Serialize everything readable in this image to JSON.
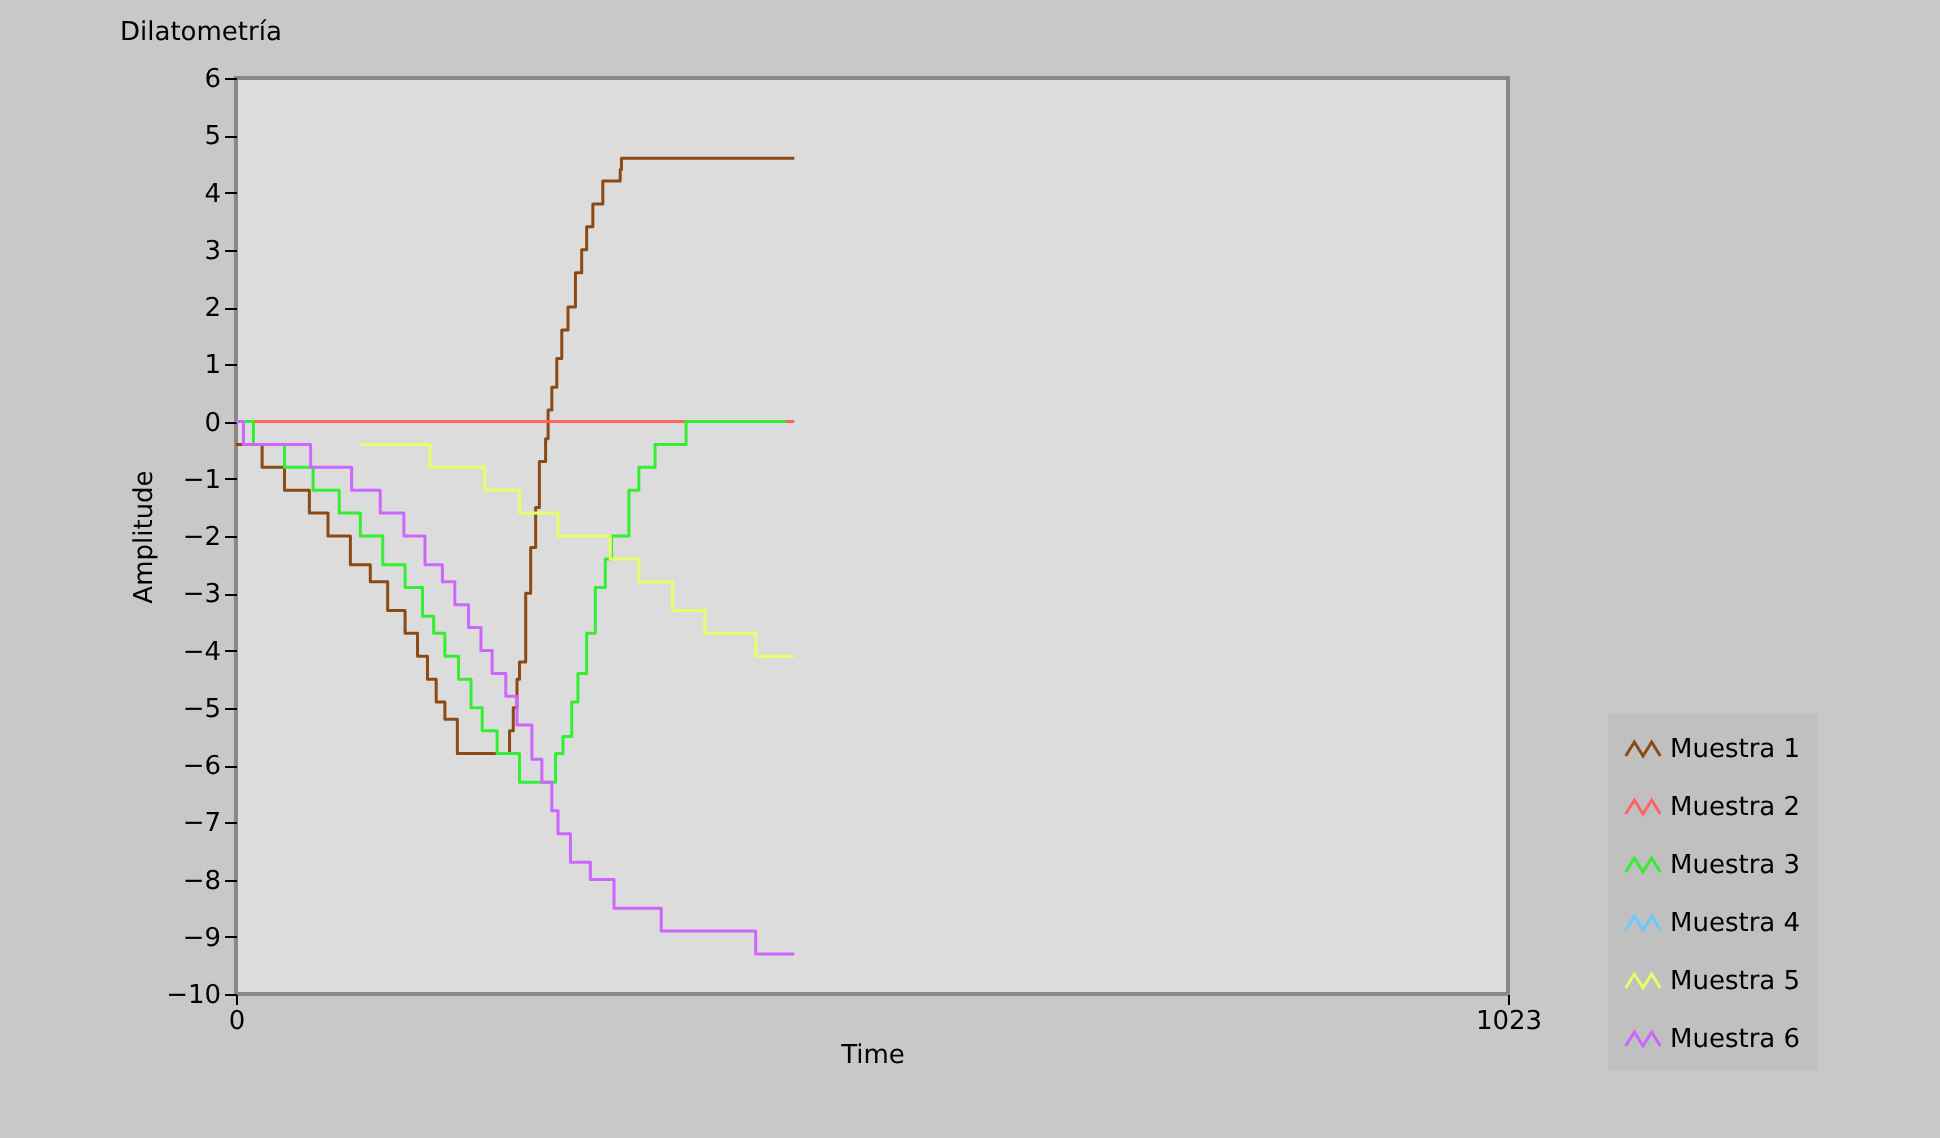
{
  "chart_data": {
    "type": "step",
    "title": "Dilatometría",
    "xlabel": "Time",
    "ylabel": "Amplitude",
    "xlim": [
      0,
      1023
    ],
    "xticks": [
      0,
      1023
    ],
    "ylim": [
      -10,
      6
    ],
    "yticks": [
      -10,
      -9,
      -8,
      -7,
      -6,
      -5,
      -4,
      -3,
      -2,
      -1,
      0,
      1,
      2,
      3,
      4,
      5,
      6
    ],
    "grid": false,
    "legend": "bottom right",
    "line_style": "solid",
    "marker": "none",
    "series": [
      {
        "name": "Muestra 1",
        "color": "#8b4a14",
        "x": [
          0,
          21,
          39,
          59,
          74,
          92,
          108,
          122,
          136,
          146,
          154,
          161,
          168,
          178,
          220,
          223,
          226,
          228,
          233,
          237,
          241,
          244,
          249,
          251,
          254,
          258,
          262,
          267,
          273,
          278,
          282,
          287,
          295,
          309,
          310,
          449
        ],
        "values": [
          -0.4,
          -0.8,
          -1.2,
          -1.6,
          -2.0,
          -2.5,
          -2.8,
          -3.3,
          -3.7,
          -4.1,
          -4.5,
          -4.9,
          -5.2,
          -5.8,
          -5.4,
          -5.0,
          -4.5,
          -4.2,
          -3.0,
          -2.2,
          -1.5,
          -0.7,
          -0.3,
          0.2,
          0.6,
          1.1,
          1.6,
          2.0,
          2.6,
          3.0,
          3.4,
          3.8,
          4.2,
          4.4,
          4.6,
          4.6
        ]
      },
      {
        "name": "Muestra 2",
        "color": "#ff6464",
        "x": [
          0,
          449
        ],
        "values": [
          0,
          0
        ]
      },
      {
        "name": "Muestra 3",
        "color": "#33ee33",
        "x": [
          0,
          14,
          39,
          62,
          83,
          100,
          118,
          136,
          150,
          159,
          168,
          179,
          189,
          198,
          210,
          228,
          257,
          263,
          270,
          275,
          282,
          289,
          297,
          302,
          316,
          324,
          337,
          362,
          442
        ],
        "values": [
          0,
          -0.4,
          -0.8,
          -1.2,
          -1.6,
          -2.0,
          -2.5,
          -2.9,
          -3.4,
          -3.7,
          -4.1,
          -4.5,
          -5.0,
          -5.4,
          -5.8,
          -6.3,
          -5.8,
          -5.5,
          -4.9,
          -4.4,
          -3.7,
          -2.9,
          -2.4,
          -2.0,
          -1.2,
          -0.8,
          -0.4,
          0,
          0
        ]
      },
      {
        "name": "Muestra 4",
        "color": "#66ccff"
      },
      {
        "name": "Muestra 5",
        "color": "#e6ff66",
        "x": [
          100,
          156,
          200,
          228,
          259,
          301,
          324,
          351,
          377,
          418,
          449
        ],
        "values": [
          -0.4,
          -0.8,
          -1.2,
          -1.6,
          -2.0,
          -2.4,
          -2.8,
          -3.3,
          -3.7,
          -4.1,
          -4.1
        ]
      },
      {
        "name": "Muestra 6",
        "color": "#cc66ff",
        "x": [
          0,
          6,
          60,
          93,
          116,
          135,
          152,
          166,
          176,
          187,
          197,
          206,
          217,
          226,
          238,
          246,
          254,
          259,
          269,
          285,
          304,
          342,
          418,
          449
        ],
        "values": [
          0,
          -0.4,
          -0.8,
          -1.2,
          -1.6,
          -2.0,
          -2.5,
          -2.8,
          -3.2,
          -3.6,
          -4.0,
          -4.4,
          -4.8,
          -5.3,
          -5.9,
          -6.3,
          -6.8,
          -7.2,
          -7.7,
          -8.0,
          -8.5,
          -8.9,
          -9.3,
          -9.3
        ]
      }
    ]
  }
}
